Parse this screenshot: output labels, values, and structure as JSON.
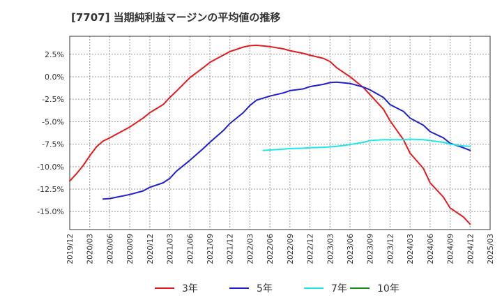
{
  "title": "[7707]  当期純利益マージンの平均値の推移",
  "chart_data": {
    "type": "line",
    "title": "[7707]  当期純利益マージンの平均値の推移",
    "xlabel": "",
    "ylabel": "",
    "ylim": [
      -17.0,
      4.5
    ],
    "grid": true,
    "legend_placement": "bottom",
    "y_ticks": [
      2.5,
      0.0,
      -2.5,
      -5.0,
      -7.5,
      -10.0,
      -12.5,
      -15.0
    ],
    "y_tick_labels": [
      "2.5%",
      "0.0%",
      "-2.5%",
      "-5.0%",
      "-7.5%",
      "-10.0%",
      "-12.5%",
      "-15.0%"
    ],
    "x_tick_labels": [
      "2019/12",
      "2020/03",
      "2020/06",
      "2020/09",
      "2020/12",
      "2021/03",
      "2021/06",
      "2021/09",
      "2021/12",
      "2022/03",
      "2022/06",
      "2022/09",
      "2022/12",
      "2023/03",
      "2023/06",
      "2023/09",
      "2023/12",
      "2024/03",
      "2024/06",
      "2024/09",
      "2024/12",
      "2025/03"
    ],
    "series": [
      {
        "name": "3年",
        "color": "#e41a1c",
        "points": [
          [
            "2019/12",
            -11.6
          ],
          [
            "2020/01",
            -10.8
          ],
          [
            "2020/02",
            -9.9
          ],
          [
            "2020/03",
            -8.8
          ],
          [
            "2020/04",
            -7.8
          ],
          [
            "2020/05",
            -7.15
          ],
          [
            "2020/06",
            -6.8
          ],
          [
            "2020/07",
            -6.4
          ],
          [
            "2020/09",
            -5.6
          ],
          [
            "2020/11",
            -4.6
          ],
          [
            "2020/12",
            -4.0
          ],
          [
            "2021/02",
            -3.1
          ],
          [
            "2021/03",
            -2.3
          ],
          [
            "2021/04",
            -1.6
          ],
          [
            "2021/06",
            -0.1
          ],
          [
            "2021/08",
            1.0
          ],
          [
            "2021/09",
            1.6
          ],
          [
            "2021/11",
            2.4
          ],
          [
            "2021/12",
            2.8
          ],
          [
            "2022/02",
            3.3
          ],
          [
            "2022/03",
            3.45
          ],
          [
            "2022/04",
            3.5
          ],
          [
            "2022/06",
            3.35
          ],
          [
            "2022/08",
            3.1
          ],
          [
            "2022/09",
            2.9
          ],
          [
            "2022/11",
            2.6
          ],
          [
            "2022/12",
            2.4
          ],
          [
            "2023/02",
            2.05
          ],
          [
            "2023/03",
            1.7
          ],
          [
            "2023/04",
            1.0
          ],
          [
            "2023/06",
            0.0
          ],
          [
            "2023/08",
            -1.2
          ],
          [
            "2023/09",
            -2.0
          ],
          [
            "2023/11",
            -3.6
          ],
          [
            "2023/12",
            -4.9
          ],
          [
            "2024/02",
            -7.0
          ],
          [
            "2024/03",
            -8.5
          ],
          [
            "2024/05",
            -10.2
          ],
          [
            "2024/06",
            -11.8
          ],
          [
            "2024/08",
            -13.4
          ],
          [
            "2024/09",
            -14.6
          ],
          [
            "2024/11",
            -15.6
          ],
          [
            "2024/12",
            -16.4
          ]
        ]
      },
      {
        "name": "5年",
        "color": "#1f1fcf",
        "points": [
          [
            "2020/05",
            -13.6
          ],
          [
            "2020/06",
            -13.55
          ],
          [
            "2020/07",
            -13.4
          ],
          [
            "2020/09",
            -13.1
          ],
          [
            "2020/11",
            -12.7
          ],
          [
            "2020/12",
            -12.3
          ],
          [
            "2021/02",
            -11.8
          ],
          [
            "2021/03",
            -11.3
          ],
          [
            "2021/04",
            -10.5
          ],
          [
            "2021/06",
            -9.3
          ],
          [
            "2021/08",
            -8.0
          ],
          [
            "2021/09",
            -7.3
          ],
          [
            "2021/11",
            -6.0
          ],
          [
            "2021/12",
            -5.2
          ],
          [
            "2022/02",
            -4.0
          ],
          [
            "2022/03",
            -3.2
          ],
          [
            "2022/04",
            -2.6
          ],
          [
            "2022/06",
            -2.15
          ],
          [
            "2022/08",
            -1.8
          ],
          [
            "2022/09",
            -1.55
          ],
          [
            "2022/11",
            -1.35
          ],
          [
            "2022/12",
            -1.1
          ],
          [
            "2023/02",
            -0.85
          ],
          [
            "2023/03",
            -0.65
          ],
          [
            "2023/04",
            -0.6
          ],
          [
            "2023/06",
            -0.75
          ],
          [
            "2023/08",
            -1.15
          ],
          [
            "2023/09",
            -1.45
          ],
          [
            "2023/11",
            -2.3
          ],
          [
            "2023/12",
            -3.1
          ],
          [
            "2024/02",
            -3.85
          ],
          [
            "2024/03",
            -4.6
          ],
          [
            "2024/05",
            -5.4
          ],
          [
            "2024/06",
            -6.1
          ],
          [
            "2024/08",
            -6.8
          ],
          [
            "2024/09",
            -7.4
          ],
          [
            "2024/11",
            -7.9
          ],
          [
            "2024/12",
            -8.2
          ]
        ]
      },
      {
        "name": "7年",
        "color": "#22e6e6",
        "points": [
          [
            "2022/05",
            -8.2
          ],
          [
            "2022/06",
            -8.15
          ],
          [
            "2022/08",
            -8.05
          ],
          [
            "2022/09",
            -8.0
          ],
          [
            "2022/11",
            -7.95
          ],
          [
            "2022/12",
            -7.9
          ],
          [
            "2023/02",
            -7.85
          ],
          [
            "2023/03",
            -7.8
          ],
          [
            "2023/04",
            -7.75
          ],
          [
            "2023/06",
            -7.55
          ],
          [
            "2023/08",
            -7.3
          ],
          [
            "2023/09",
            -7.1
          ],
          [
            "2023/11",
            -7.0
          ],
          [
            "2023/12",
            -7.0
          ],
          [
            "2024/02",
            -7.0
          ],
          [
            "2024/03",
            -6.95
          ],
          [
            "2024/05",
            -7.0
          ],
          [
            "2024/06",
            -7.1
          ],
          [
            "2024/08",
            -7.3
          ],
          [
            "2024/09",
            -7.5
          ],
          [
            "2024/11",
            -7.7
          ],
          [
            "2024/12",
            -7.75
          ]
        ]
      },
      {
        "name": "10年",
        "color": "#1a8c1a",
        "points": []
      }
    ]
  }
}
